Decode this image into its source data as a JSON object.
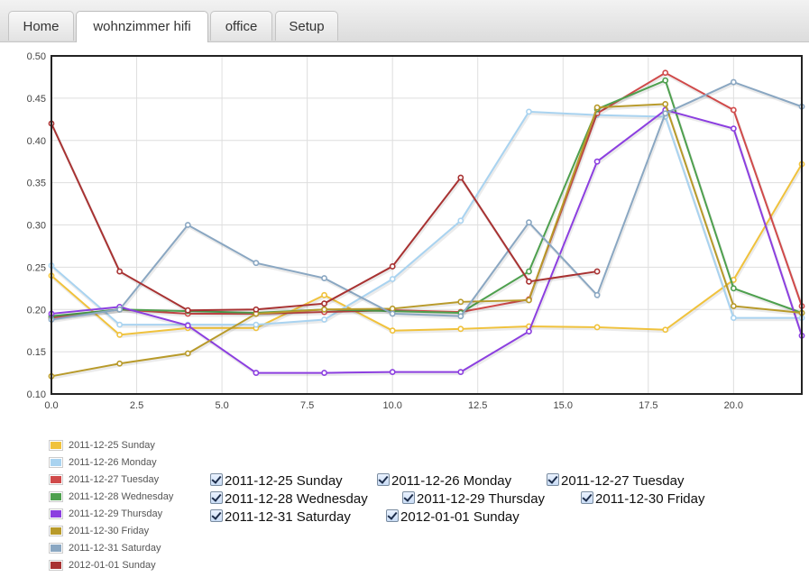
{
  "tabs": [
    {
      "label": "Home",
      "active": false
    },
    {
      "label": "wohnzimmer hifi",
      "active": true
    },
    {
      "label": "office",
      "active": false
    },
    {
      "label": "Setup",
      "active": false
    }
  ],
  "chart_data": {
    "type": "line",
    "title": "",
    "xlabel": "",
    "ylabel": "",
    "xlim": [
      0,
      22
    ],
    "ylim": [
      0.1,
      0.5
    ],
    "xticks": [
      "0.0",
      "2.5",
      "5.0",
      "7.5",
      "10.0",
      "12.5",
      "15.0",
      "17.5",
      "20.0"
    ],
    "yticks": [
      "0.10",
      "0.15",
      "0.20",
      "0.25",
      "0.30",
      "0.35",
      "0.40",
      "0.45",
      "0.50"
    ],
    "grid": true,
    "x": [
      0,
      2,
      4,
      6,
      8,
      10,
      12,
      14,
      16,
      18,
      20,
      22
    ],
    "series": [
      {
        "name": "2011-12-25 Sunday",
        "color": "#f0c23c",
        "values": [
          0.24,
          0.17,
          0.178,
          0.178,
          0.217,
          0.175,
          0.177,
          0.18,
          0.179,
          0.176,
          0.235,
          0.372
        ]
      },
      {
        "name": "2011-12-26 Monday",
        "color": "#a9d3f0",
        "values": [
          0.252,
          0.182,
          0.182,
          0.182,
          0.188,
          0.236,
          0.305,
          0.434,
          0.43,
          0.428,
          0.19,
          0.19
        ]
      },
      {
        "name": "2011-12-27 Tuesday",
        "color": "#d04a4a",
        "values": [
          0.19,
          0.2,
          0.195,
          0.195,
          0.197,
          0.199,
          0.197,
          0.212,
          0.432,
          0.48,
          0.436,
          0.204
        ]
      },
      {
        "name": "2011-12-28 Wednesday",
        "color": "#4ea04e",
        "values": [
          0.192,
          0.2,
          0.198,
          0.196,
          0.2,
          0.198,
          0.196,
          0.245,
          0.437,
          0.471,
          0.225,
          0.196
        ]
      },
      {
        "name": "2011-12-29 Thursday",
        "color": "#8c3fe0",
        "values": [
          0.195,
          0.203,
          0.181,
          0.125,
          0.125,
          0.126,
          0.126,
          0.174,
          0.375,
          0.436,
          0.414,
          0.169
        ]
      },
      {
        "name": "2011-12-30 Friday",
        "color": "#b89a2a",
        "values": [
          0.121,
          0.136,
          0.148,
          0.195,
          0.2,
          0.201,
          0.209,
          0.211,
          0.439,
          0.443,
          0.204,
          0.196
        ]
      },
      {
        "name": "2011-12-31 Saturday",
        "color": "#8aa7c2",
        "values": [
          0.188,
          0.2,
          0.3,
          0.255,
          0.237,
          0.195,
          0.192,
          0.303,
          0.217,
          0.432,
          0.469,
          0.44
        ]
      },
      {
        "name": "2012-01-01 Sunday",
        "color": "#a83232",
        "values": [
          0.42,
          0.245,
          0.199,
          0.2,
          0.207,
          0.251,
          0.356,
          0.233,
          0.245,
          null,
          null,
          null
        ]
      }
    ],
    "legend": "bottom-left"
  },
  "toggles": [
    {
      "label": "2011-12-25 Sunday",
      "checked": true
    },
    {
      "label": "2011-12-26 Monday",
      "checked": true
    },
    {
      "label": "2011-12-27 Tuesday",
      "checked": true
    },
    {
      "label": "2011-12-28 Wednesday",
      "checked": true
    },
    {
      "label": "2011-12-29 Thursday",
      "checked": true
    },
    {
      "label": "2011-12-30 Friday",
      "checked": true
    },
    {
      "label": "2011-12-31 Saturday",
      "checked": true
    },
    {
      "label": "2012-01-01 Sunday",
      "checked": true
    }
  ]
}
